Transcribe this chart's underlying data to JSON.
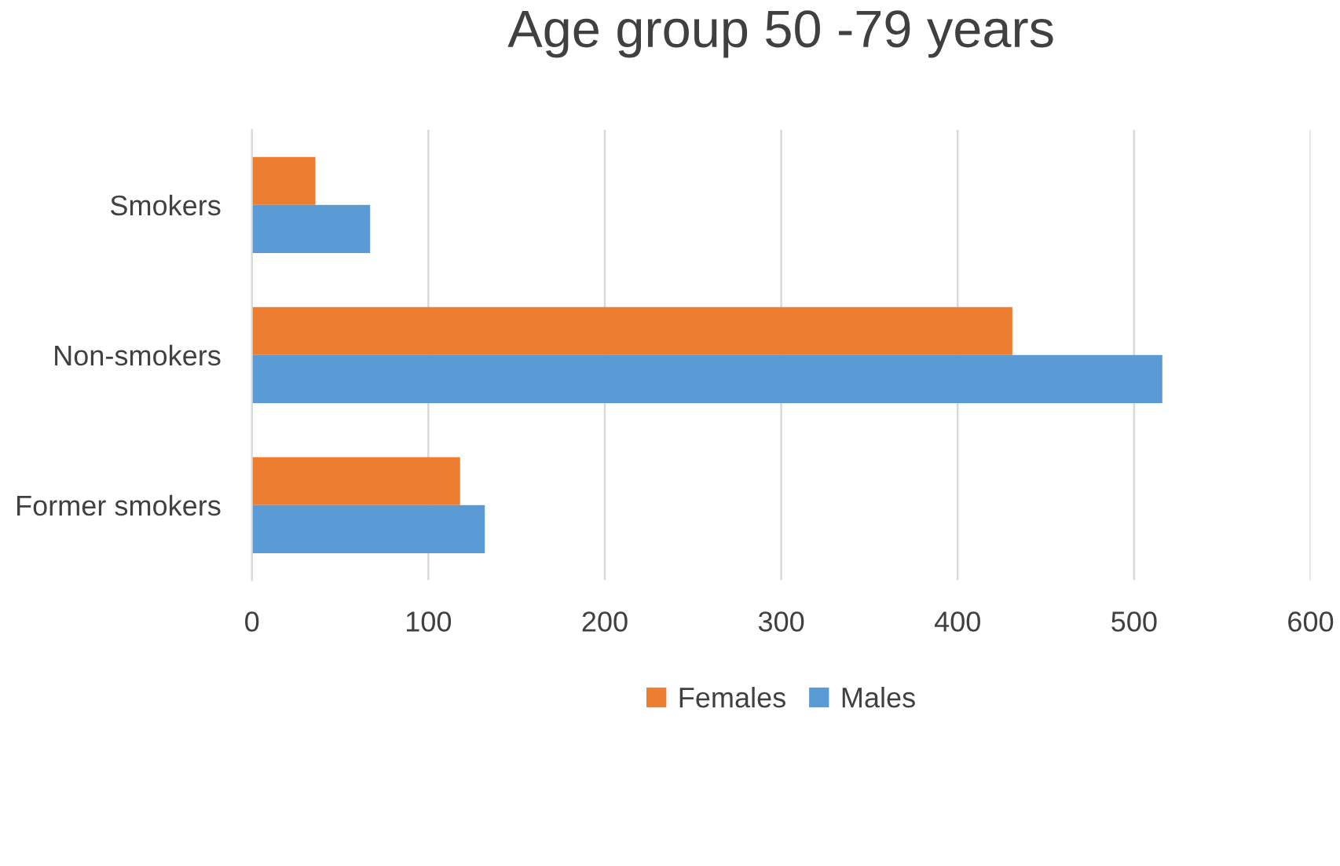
{
  "chart_data": {
    "type": "bar",
    "orientation": "horizontal",
    "title": "Age group 50 -79 years",
    "categories": [
      "Smokers",
      "Non-smokers",
      "Former smokers"
    ],
    "series": [
      {
        "name": "Females",
        "color": "#ed7d31",
        "values": [
          36,
          431,
          118
        ]
      },
      {
        "name": "Males",
        "color": "#5b9bd5",
        "values": [
          67,
          516,
          132
        ]
      }
    ],
    "xlim": [
      0,
      600
    ],
    "xticks": [
      0,
      100,
      200,
      300,
      400,
      500,
      600
    ],
    "grid": "x",
    "legend": "bottom"
  }
}
